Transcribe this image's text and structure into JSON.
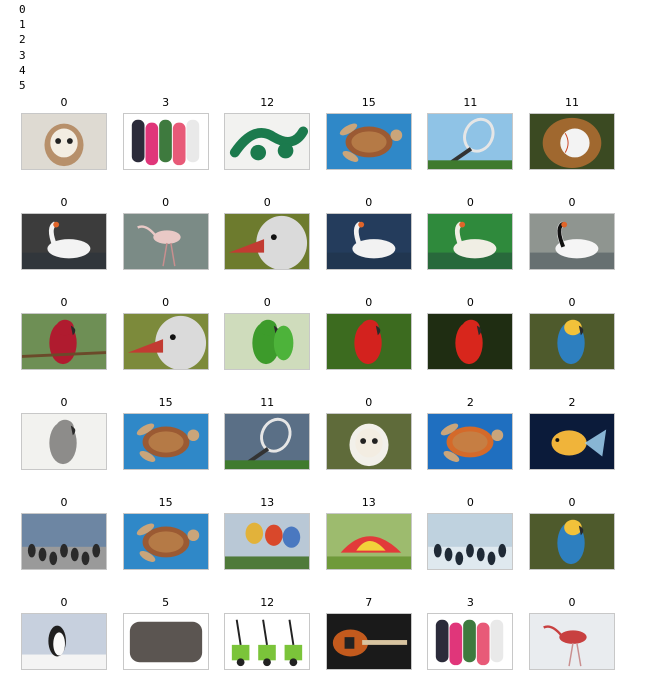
{
  "stdout_lines": [
    "0",
    "1",
    "2",
    "3",
    "4",
    "5"
  ],
  "grid": [
    {
      "label": "0",
      "subject": "barn-owl",
      "bg": "#dedad2",
      "fg": "#b7906b"
    },
    {
      "label": "3",
      "subject": "flip-flops",
      "bg": "#ffffff",
      "fg": "#e0367a"
    },
    {
      "label": "12",
      "subject": "green-garden-tool",
      "bg": "#f2f2f0",
      "fg": "#1b7a4d"
    },
    {
      "label": "15",
      "subject": "sea-turtle",
      "bg": "#2f88c8",
      "fg": "#9b5a33"
    },
    {
      "label": "11",
      "subject": "tennis-racket",
      "bg": "#8fc3e6",
      "fg": "#e6e6e6"
    },
    {
      "label": "11",
      "subject": "baseball-glove",
      "bg": "#3b4a22",
      "fg": "#a0682f"
    },
    {
      "label": "0",
      "subject": "white-swan",
      "bg": "#3c3c3c",
      "fg": "#f3f3f3"
    },
    {
      "label": "0",
      "subject": "flamingo",
      "bg": "#7b8b86",
      "fg": "#e9c9c6"
    },
    {
      "label": "0",
      "subject": "duck-head",
      "bg": "#6d7b2e",
      "fg": "#c23b32"
    },
    {
      "label": "0",
      "subject": "white-swan",
      "bg": "#243c5c",
      "fg": "#f2f2f2"
    },
    {
      "label": "0",
      "subject": "white-geese",
      "bg": "#2f8a3c",
      "fg": "#f0eee4"
    },
    {
      "label": "0",
      "subject": "black-necked-swan",
      "bg": "#8f9590",
      "fg": "#f5f5f5"
    },
    {
      "label": "0",
      "subject": "eclectus-parrot",
      "bg": "#6e8f55",
      "fg": "#b01b2f"
    },
    {
      "label": "0",
      "subject": "duck-head",
      "bg": "#7c8a3b",
      "fg": "#c23b32"
    },
    {
      "label": "0",
      "subject": "green-parrots",
      "bg": "#cfdcbc",
      "fg": "#3d9b2b"
    },
    {
      "label": "0",
      "subject": "scarlet-macaw",
      "bg": "#3c6b1f",
      "fg": "#d3221e"
    },
    {
      "label": "0",
      "subject": "scarlet-macaw",
      "bg": "#1f2d12",
      "fg": "#d8261c"
    },
    {
      "label": "0",
      "subject": "blue-gold-macaw",
      "bg": "#4e5a2c",
      "fg": "#2d7fbf"
    },
    {
      "label": "0",
      "subject": "grey-parrot-chick",
      "bg": "#f2f2ef",
      "fg": "#8d8c8a"
    },
    {
      "label": "15",
      "subject": "sea-turtle",
      "bg": "#2f88c8",
      "fg": "#9b5a33"
    },
    {
      "label": "11",
      "subject": "tennis-racket",
      "bg": "#5a6f86",
      "fg": "#e6e6e6"
    },
    {
      "label": "0",
      "subject": "snowy-owl",
      "bg": "#5f6b3a",
      "fg": "#f2f0ea"
    },
    {
      "label": "2",
      "subject": "swimming-turtle",
      "bg": "#1f6fc0",
      "fg": "#d46a2a"
    },
    {
      "label": "2",
      "subject": "goldfish",
      "bg": "#0b1b3a",
      "fg": "#f0b43a"
    },
    {
      "label": "0",
      "subject": "penguins",
      "bg": "#6d86a3",
      "fg": "#2a2a2a"
    },
    {
      "label": "15",
      "subject": "sea-turtle",
      "bg": "#2f88c8",
      "fg": "#9b5a33"
    },
    {
      "label": "13",
      "subject": "hot-air-balloons",
      "bg": "#b9c8d6",
      "fg": "#d9482b"
    },
    {
      "label": "13",
      "subject": "play-parachute",
      "bg": "#9dbb6e",
      "fg": "#e23a3a"
    },
    {
      "label": "0",
      "subject": "swimming-penguins",
      "bg": "#bfd2df",
      "fg": "#1f2a36"
    },
    {
      "label": "0",
      "subject": "blue-gold-macaw",
      "bg": "#4e5a2c",
      "fg": "#2d7fbf"
    },
    {
      "label": "0",
      "subject": "penguin",
      "bg": "#c7d0de",
      "fg": "#1f1f1f"
    },
    {
      "label": "5",
      "subject": "pillow",
      "bg": "#ffffff",
      "fg": "#5b5551"
    },
    {
      "label": "12",
      "subject": "snow-blowers",
      "bg": "#ffffff",
      "fg": "#7bc43a"
    },
    {
      "label": "7",
      "subject": "bass-guitar",
      "bg": "#1a1a1a",
      "fg": "#c35a1d"
    },
    {
      "label": "3",
      "subject": "flip-flops",
      "bg": "#ffffff",
      "fg": "#e0367a"
    },
    {
      "label": "0",
      "subject": "flying-flamingos",
      "bg": "#e9ecef",
      "fg": "#c84040"
    }
  ]
}
